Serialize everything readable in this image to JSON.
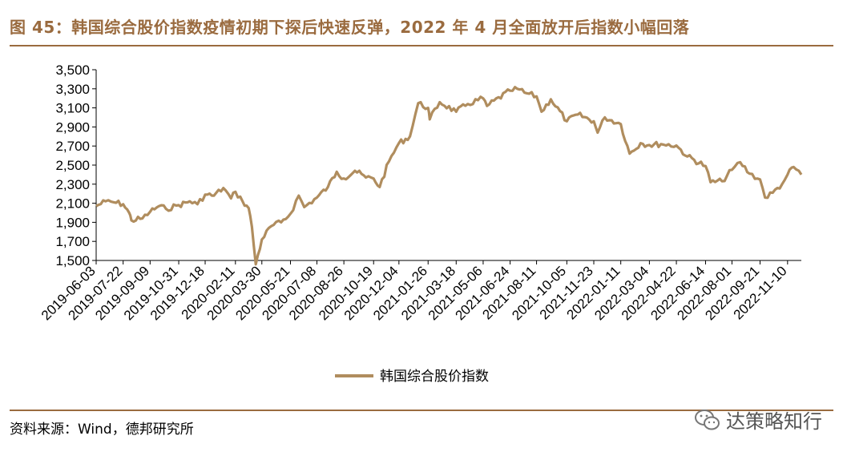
{
  "title": "图 45：韩国综合股价指数疫情初期下探后快速反弹，2022 年 4 月全面放开后指数小幅回落",
  "source": "资料来源：Wind，德邦研究所",
  "watermark": "达策略知行",
  "colors": {
    "accent": "#9A6B3F",
    "series": "#B08D5E"
  },
  "chart_data": {
    "type": "line",
    "ylim": [
      1500,
      3500
    ],
    "yticks": [
      "1,500",
      "1,700",
      "1,900",
      "2,100",
      "2,300",
      "2,500",
      "2,700",
      "2,900",
      "3,100",
      "3,300",
      "3,500"
    ],
    "xticks": [
      "2019-06-03",
      "2019-07-22",
      "2019-09-09",
      "2019-10-31",
      "2019-12-18",
      "2020-02-11",
      "2020-03-30",
      "2020-05-21",
      "2020-07-08",
      "2020-08-26",
      "2020-10-19",
      "2020-12-04",
      "2021-01-26",
      "2021-03-18",
      "2021-05-06",
      "2021-06-24",
      "2021-08-11",
      "2021-10-05",
      "2021-11-23",
      "2022-01-11",
      "2022-03-04",
      "2022-04-22",
      "2022-06-14",
      "2022-08-01",
      "2022-09-21",
      "2022-11-10"
    ],
    "xlim": [
      "2019-06-03",
      "2022-12-05"
    ],
    "legend": "top-center-below",
    "grid": false,
    "series": [
      {
        "name": "韩国综合股价指数",
        "points": [
          [
            "2019-06-03",
            2070
          ],
          [
            "2019-06-20",
            2120
          ],
          [
            "2019-07-05",
            2110
          ],
          [
            "2019-07-22",
            2090
          ],
          [
            "2019-08-02",
            2000
          ],
          [
            "2019-08-06",
            1920
          ],
          [
            "2019-08-26",
            1940
          ],
          [
            "2019-09-09",
            2010
          ],
          [
            "2019-09-25",
            2070
          ],
          [
            "2019-10-08",
            2040
          ],
          [
            "2019-10-31",
            2080
          ],
          [
            "2019-11-20",
            2120
          ],
          [
            "2019-12-04",
            2090
          ],
          [
            "2019-12-18",
            2190
          ],
          [
            "2020-01-03",
            2180
          ],
          [
            "2020-01-20",
            2260
          ],
          [
            "2020-02-03",
            2150
          ],
          [
            "2020-02-11",
            2220
          ],
          [
            "2020-02-24",
            2120
          ],
          [
            "2020-03-06",
            2050
          ],
          [
            "2020-03-12",
            1850
          ],
          [
            "2020-03-19",
            1460
          ],
          [
            "2020-03-30",
            1720
          ],
          [
            "2020-04-16",
            1860
          ],
          [
            "2020-05-04",
            1900
          ],
          [
            "2020-05-21",
            1990
          ],
          [
            "2020-06-05",
            2180
          ],
          [
            "2020-06-15",
            2060
          ],
          [
            "2020-07-08",
            2160
          ],
          [
            "2020-07-28",
            2270
          ],
          [
            "2020-08-13",
            2430
          ],
          [
            "2020-08-26",
            2360
          ],
          [
            "2020-09-15",
            2440
          ],
          [
            "2020-10-05",
            2370
          ],
          [
            "2020-10-19",
            2360
          ],
          [
            "2020-10-30",
            2270
          ],
          [
            "2020-11-16",
            2540
          ],
          [
            "2020-12-04",
            2730
          ],
          [
            "2020-12-24",
            2800
          ],
          [
            "2021-01-08",
            3150
          ],
          [
            "2021-01-26",
            3100
          ],
          [
            "2021-01-29",
            2980
          ],
          [
            "2021-02-16",
            3160
          ],
          [
            "2021-03-18",
            3060
          ],
          [
            "2021-04-08",
            3140
          ],
          [
            "2021-05-06",
            3200
          ],
          [
            "2021-05-13",
            3120
          ],
          [
            "2021-06-24",
            3280
          ],
          [
            "2021-07-07",
            3300
          ],
          [
            "2021-07-20",
            3260
          ],
          [
            "2021-08-11",
            3220
          ],
          [
            "2021-08-20",
            3060
          ],
          [
            "2021-09-06",
            3190
          ],
          [
            "2021-10-05",
            2960
          ],
          [
            "2021-10-25",
            3030
          ],
          [
            "2021-11-23",
            2960
          ],
          [
            "2021-11-30",
            2840
          ],
          [
            "2021-12-13",
            3000
          ],
          [
            "2022-01-11",
            2930
          ],
          [
            "2022-01-27",
            2620
          ],
          [
            "2022-02-16",
            2730
          ],
          [
            "2022-03-04",
            2710
          ],
          [
            "2022-03-25",
            2720
          ],
          [
            "2022-04-22",
            2705
          ],
          [
            "2022-05-12",
            2590
          ],
          [
            "2022-06-14",
            2490
          ],
          [
            "2022-06-23",
            2320
          ],
          [
            "2022-07-14",
            2330
          ],
          [
            "2022-08-01",
            2450
          ],
          [
            "2022-08-16",
            2530
          ],
          [
            "2022-09-02",
            2410
          ],
          [
            "2022-09-21",
            2350
          ],
          [
            "2022-09-30",
            2160
          ],
          [
            "2022-10-14",
            2210
          ],
          [
            "2022-10-31",
            2300
          ],
          [
            "2022-11-10",
            2400
          ],
          [
            "2022-11-21",
            2480
          ],
          [
            "2022-12-05",
            2400
          ]
        ]
      }
    ]
  }
}
